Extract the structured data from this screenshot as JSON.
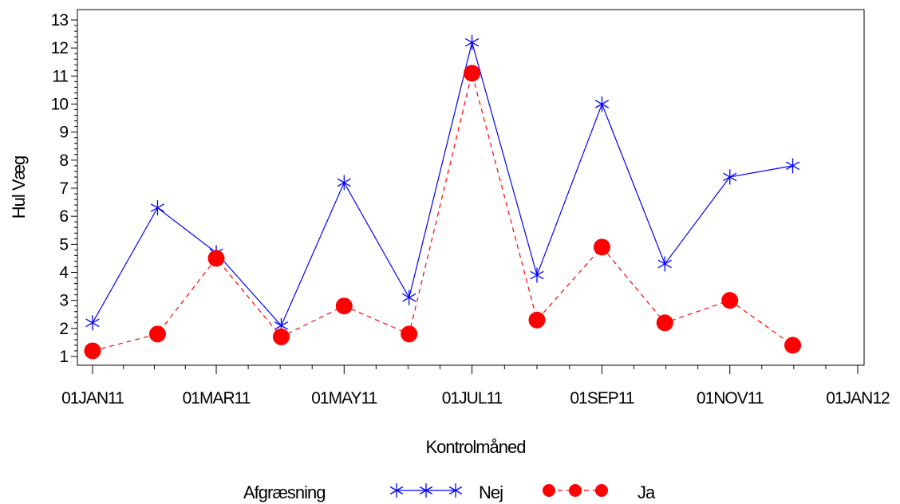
{
  "chart_data": {
    "type": "line",
    "xlabel": "Kontrolmåned",
    "ylabel": "Hul Væg",
    "x_tick_labels": [
      "01JAN11",
      "01MAR11",
      "01MAY11",
      "01JUL11",
      "01SEP11",
      "01NOV11",
      "01JAN12"
    ],
    "x_ticks": [
      "2011-01-01",
      "2011-03-01",
      "2011-05-01",
      "2011-07-01",
      "2011-09-01",
      "2011-11-01",
      "2012-01-01"
    ],
    "xlim": [
      "2011-01-01",
      "2012-01-01"
    ],
    "ylim": [
      1,
      13
    ],
    "y_ticks": [
      1,
      2,
      3,
      4,
      5,
      6,
      7,
      8,
      9,
      10,
      11,
      12,
      13
    ],
    "x": [
      "2011-01-01",
      "2011-02-01",
      "2011-03-01",
      "2011-04-01",
      "2011-05-01",
      "2011-06-01",
      "2011-07-01",
      "2011-08-01",
      "2011-09-01",
      "2011-10-01",
      "2011-11-01",
      "2011-12-01"
    ],
    "series": [
      {
        "name": "Nej",
        "color": "#0000ff",
        "marker": "star",
        "line_style": "solid",
        "values": [
          2.2,
          6.3,
          4.7,
          2.1,
          7.2,
          3.1,
          12.2,
          3.9,
          10.0,
          4.3,
          7.4,
          7.8
        ]
      },
      {
        "name": "Ja",
        "color": "#ff0000",
        "marker": "filled-circle",
        "line_style": "dashed",
        "values": [
          1.2,
          1.8,
          4.5,
          1.7,
          2.8,
          1.8,
          11.1,
          2.3,
          4.9,
          2.2,
          3.0,
          1.4
        ]
      }
    ],
    "legend": {
      "title": "Afgræsning",
      "placement": "bottom"
    },
    "grid": false
  }
}
